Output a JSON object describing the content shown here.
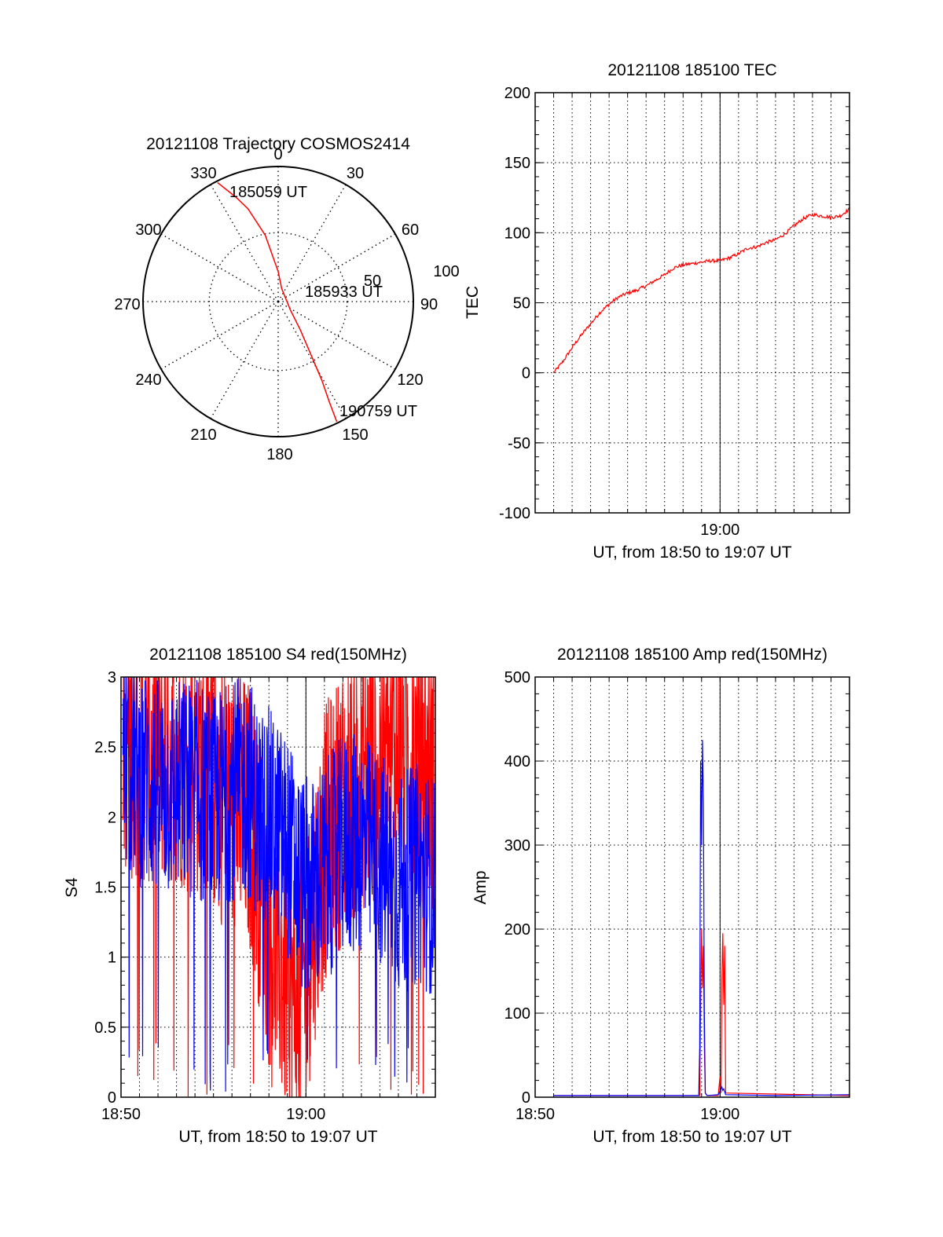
{
  "colors": {
    "red": "#ff0000",
    "blue": "#0000ff",
    "axis": "#000000",
    "grid": "#000000"
  },
  "chart_data": [
    {
      "id": "trajectory",
      "type": "polar",
      "title": "20121108 Trajectory COSMOS2414",
      "angle_labels": [
        {
          "deg": 0,
          "text": "0"
        },
        {
          "deg": 30,
          "text": "30"
        },
        {
          "deg": 60,
          "text": "60"
        },
        {
          "deg": 90,
          "text": "90"
        },
        {
          "deg": 120,
          "text": "120"
        },
        {
          "deg": 150,
          "text": "150"
        },
        {
          "deg": 180,
          "text": "180"
        },
        {
          "deg": 210,
          "text": "210"
        },
        {
          "deg": 240,
          "text": "240"
        },
        {
          "deg": 270,
          "text": "270"
        },
        {
          "deg": 300,
          "text": "300"
        },
        {
          "deg": 330,
          "text": "330"
        }
      ],
      "radial_labels": [
        "50",
        "100"
      ],
      "track": {
        "color": "red",
        "points": [
          [
            333,
            89
          ],
          [
            338,
            75
          ],
          [
            342,
            65
          ],
          [
            349,
            45
          ],
          [
            360,
            20
          ],
          [
            15,
            9
          ],
          [
            125,
            10
          ],
          [
            142,
            24
          ],
          [
            148,
            40
          ],
          [
            151,
            60
          ],
          [
            153,
            75
          ],
          [
            154,
            89
          ]
        ]
      },
      "annotations": [
        {
          "text": "185059 UT",
          "anchor": "start"
        },
        {
          "text": "185933 UT",
          "anchor": "mid"
        },
        {
          "text": "190759 UT",
          "anchor": "end"
        }
      ]
    },
    {
      "id": "tec",
      "type": "line",
      "title": "20121108 185100 TEC",
      "ylabel": "TEC",
      "xlabel": "UT, from 18:50 to 19:07 UT",
      "xlim": [
        0,
        17
      ],
      "x_ticks": [
        {
          "x": 10,
          "label": "19:00"
        }
      ],
      "ylim": [
        -100,
        200
      ],
      "y_ticks": [
        -100,
        -50,
        0,
        50,
        100,
        150,
        200
      ],
      "grid": "dotted",
      "series": [
        {
          "color": "red",
          "noise": 1.2,
          "x": [
            1,
            1.5,
            2,
            2.5,
            3,
            3.5,
            4,
            4.5,
            5,
            5.5,
            6,
            6.5,
            7,
            7.5,
            8,
            8.5,
            9,
            9.5,
            10,
            10.5,
            11,
            11.5,
            12,
            12.5,
            13,
            13.5,
            14,
            14.5,
            15,
            15.5,
            16,
            16.5,
            17
          ],
          "y": [
            0,
            8,
            18,
            27,
            35,
            43,
            49,
            54,
            57,
            59,
            62,
            66,
            70,
            75,
            77,
            78,
            79,
            80,
            80,
            82,
            85,
            89,
            90,
            93,
            95,
            99,
            105,
            110,
            113,
            112,
            111,
            112,
            117
          ]
        }
      ]
    },
    {
      "id": "s4",
      "type": "line",
      "title": "20121108 185100 S4 red(150MHz)",
      "ylabel": "S4",
      "xlabel": "UT, from 18:50 to 19:07 UT",
      "xlim": [
        0,
        17
      ],
      "x_ticks": [
        {
          "x": 0,
          "label": "18:50"
        },
        {
          "x": 10,
          "label": "19:00"
        }
      ],
      "ylim": [
        0,
        3
      ],
      "y_ticks": [
        {
          "v": 0,
          "label": "0"
        },
        {
          "v": 0.5,
          "label": "0.5"
        },
        {
          "v": 1,
          "label": "1"
        },
        {
          "v": 1.5,
          "label": "1.5"
        },
        {
          "v": 2,
          "label": "2"
        },
        {
          "v": 2.5,
          "label": "2.5"
        },
        {
          "v": 3,
          "label": "3"
        }
      ],
      "grid": "dotted",
      "series": [
        {
          "color": "red",
          "noise": 1.0,
          "x": [
            0.1,
            1,
            2,
            3,
            4,
            5,
            6,
            7,
            7.5,
            8,
            8.5,
            9,
            9.5,
            10,
            10.5,
            11,
            12,
            13,
            14,
            15,
            16,
            17
          ],
          "y": [
            2.6,
            2.5,
            2.5,
            2.5,
            2.4,
            2.3,
            2.1,
            2.0,
            1.6,
            1.2,
            1.0,
            0.8,
            0.7,
            0.9,
            1.4,
            1.8,
            2.1,
            2.3,
            2.4,
            2.5,
            2.4,
            2.3
          ]
        },
        {
          "color": "blue",
          "noise": 0.8,
          "x": [
            0.1,
            1,
            2,
            3,
            4,
            5,
            6,
            7,
            7.5,
            8,
            8.5,
            9,
            9.5,
            10,
            10.5,
            11,
            12,
            13,
            14,
            15,
            16,
            17
          ],
          "y": [
            2.4,
            2.3,
            2.2,
            2.2,
            2.2,
            2.1,
            2.2,
            2.2,
            2.0,
            2.0,
            1.9,
            1.8,
            1.6,
            1.5,
            1.5,
            1.6,
            1.8,
            1.8,
            1.7,
            1.5,
            1.6,
            1.5
          ]
        }
      ]
    },
    {
      "id": "amp",
      "type": "line",
      "title": "20121108 185100 Amp red(150MHz)",
      "ylabel": "Amp",
      "xlabel": "UT, from 18:50 to 19:07 UT",
      "xlim": [
        0,
        17
      ],
      "x_ticks": [
        {
          "x": 0,
          "label": "18:50"
        },
        {
          "x": 10,
          "label": "19:00"
        }
      ],
      "ylim": [
        0,
        500
      ],
      "y_ticks": [
        0,
        100,
        200,
        300,
        400,
        500
      ],
      "grid": "dotted",
      "series": [
        {
          "color": "red",
          "x": [
            1,
            8.9,
            8.95,
            9.0,
            9.05,
            9.1,
            9.15,
            9.2,
            9.3,
            9.9,
            10.0,
            10.05,
            10.1,
            10.15,
            10.2,
            10.25,
            10.3,
            17
          ],
          "y": [
            2,
            2,
            110,
            200,
            130,
            180,
            60,
            5,
            2,
            2,
            25,
            5,
            140,
            195,
            110,
            180,
            5,
            2
          ]
        },
        {
          "color": "blue",
          "x": [
            1,
            8.85,
            8.9,
            8.95,
            9.0,
            9.05,
            9.1,
            9.15,
            9.2,
            9.3,
            9.9,
            10.1,
            10.15,
            10.2,
            10.3,
            13,
            17
          ],
          "y": [
            2,
            2,
            60,
            400,
            300,
            425,
            350,
            100,
            5,
            2,
            3,
            12,
            8,
            10,
            3,
            2,
            3
          ]
        }
      ]
    }
  ]
}
